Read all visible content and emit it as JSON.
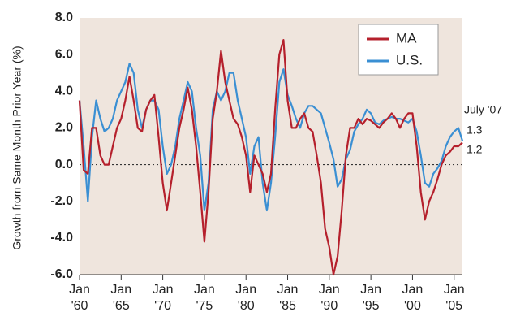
{
  "chart_data": {
    "type": "line",
    "y_label": "Growth from Same Month Prior Year (%)",
    "annotations": [
      "July '07",
      "1.3",
      "1.2"
    ],
    "legend": "upper right",
    "xlim": [
      1960,
      2006
    ],
    "xticks": [
      {
        "value": 1960,
        "label": "Jan '60"
      },
      {
        "value": 1965,
        "label": "Jan '65"
      },
      {
        "value": 1970,
        "label": "Jan '70"
      },
      {
        "value": 1975,
        "label": "Jan '75"
      },
      {
        "value": 1980,
        "label": "Jan '80"
      },
      {
        "value": 1985,
        "label": "Jan '85"
      },
      {
        "value": 1990,
        "label": "Jan '90"
      },
      {
        "value": 1995,
        "label": "Jan '95"
      },
      {
        "value": 2000,
        "label": "Jan '00"
      },
      {
        "value": 2005,
        "label": "Jan '05"
      }
    ],
    "ylim": [
      -6,
      8
    ],
    "yticks": [
      {
        "value": -6,
        "label": "-6.0"
      },
      {
        "value": -4,
        "label": "-4.0"
      },
      {
        "value": -2,
        "label": "-2.0"
      },
      {
        "value": 0,
        "label": "0.0"
      },
      {
        "value": 2,
        "label": "2.0"
      },
      {
        "value": 4,
        "label": "4.0"
      },
      {
        "value": 6,
        "label": "6.0"
      },
      {
        "value": 8,
        "label": "8.0"
      }
    ],
    "x": [
      1960,
      1960.5,
      1961,
      1961.5,
      1962,
      1962.5,
      1963,
      1963.5,
      1964,
      1964.5,
      1965,
      1965.5,
      1966,
      1966.5,
      1967,
      1967.5,
      1968,
      1968.5,
      1969,
      1969.5,
      1970,
      1970.5,
      1971,
      1971.5,
      1972,
      1972.5,
      1973,
      1973.5,
      1974,
      1974.5,
      1975,
      1975.5,
      1976,
      1976.5,
      1977,
      1977.5,
      1978,
      1978.5,
      1979,
      1979.5,
      1980,
      1980.5,
      1981,
      1981.5,
      1982,
      1982.5,
      1983,
      1983.5,
      1984,
      1984.5,
      1985,
      1985.5,
      1986,
      1986.5,
      1987,
      1987.5,
      1988,
      1988.5,
      1989,
      1989.5,
      1990,
      1990.5,
      1991,
      1991.5,
      1992,
      1992.5,
      1993,
      1993.5,
      1994,
      1994.5,
      1995,
      1995.5,
      1996,
      1996.5,
      1997,
      1997.5,
      1998,
      1998.5,
      1999,
      1999.5,
      2000,
      2000.5,
      2001,
      2001.5,
      2002,
      2002.5,
      2003,
      2003.5,
      2004,
      2004.5,
      2005,
      2005.5,
      2006
    ],
    "series": [
      {
        "name": "MA",
        "color": "#b5202c",
        "values": [
          3.5,
          -0.3,
          -0.5,
          2.0,
          2.0,
          0.5,
          0.0,
          0.0,
          1.0,
          2.0,
          2.5,
          3.5,
          4.8,
          3.5,
          2.0,
          1.8,
          3.0,
          3.5,
          3.8,
          1.5,
          -1.0,
          -2.5,
          -1.0,
          0.5,
          2.0,
          3.0,
          4.2,
          3.0,
          1.0,
          -1.5,
          -4.2,
          -1.5,
          2.5,
          4.0,
          6.2,
          4.5,
          3.5,
          2.5,
          2.2,
          1.5,
          0.5,
          -1.5,
          0.5,
          0.0,
          -0.5,
          -1.5,
          -0.5,
          3.0,
          6.0,
          6.8,
          3.5,
          2.0,
          2.0,
          2.5,
          2.8,
          2.0,
          1.8,
          0.5,
          -1.0,
          -3.5,
          -4.5,
          -6.0,
          -5.0,
          -2.5,
          0.5,
          2.0,
          2.0,
          2.5,
          2.2,
          2.5,
          2.4,
          2.2,
          2.0,
          2.3,
          2.5,
          2.8,
          2.5,
          2.0,
          2.5,
          2.8,
          2.8,
          1.0,
          -1.5,
          -3.0,
          -2.0,
          -1.5,
          -0.8,
          0.0,
          0.5,
          0.7,
          1.0,
          1.0,
          1.2
        ]
      },
      {
        "name": "U.S.",
        "color": "#3a8fd3",
        "values": [
          3.5,
          1.0,
          -2.0,
          1.5,
          3.5,
          2.5,
          1.8,
          2.0,
          2.5,
          3.5,
          4.0,
          4.5,
          5.5,
          5.0,
          3.0,
          2.0,
          3.0,
          3.5,
          3.5,
          3.0,
          1.0,
          -0.5,
          0.0,
          1.0,
          2.5,
          3.5,
          4.5,
          4.0,
          2.0,
          0.5,
          -2.5,
          -1.0,
          3.0,
          4.0,
          3.5,
          4.0,
          5.0,
          5.0,
          3.5,
          2.5,
          1.5,
          -0.5,
          1.0,
          1.5,
          -1.0,
          -2.5,
          -1.0,
          1.5,
          4.5,
          5.2,
          3.8,
          3.2,
          2.5,
          2.0,
          2.8,
          3.2,
          3.2,
          3.0,
          2.8,
          2.0,
          1.2,
          0.3,
          -1.2,
          -0.8,
          0.3,
          0.8,
          1.8,
          2.2,
          2.5,
          3.0,
          2.8,
          2.3,
          2.2,
          2.4,
          2.5,
          2.6,
          2.5,
          2.5,
          2.4,
          2.3,
          2.5,
          1.8,
          0.5,
          -1.0,
          -1.2,
          -0.5,
          -0.2,
          0.2,
          1.0,
          1.5,
          1.8,
          2.0,
          1.3
        ]
      }
    ]
  }
}
